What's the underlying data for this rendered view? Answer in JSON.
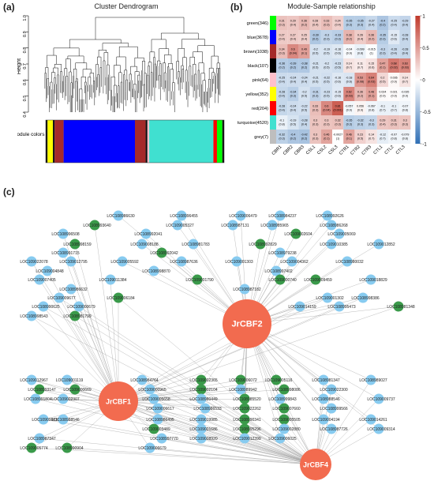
{
  "panel_a": {
    "label": "(a)",
    "title": "Cluster Dendrogram",
    "ylabel": "Height",
    "yticks": [
      "0.4",
      "0.5",
      "0.6",
      "0.7",
      "0.8",
      "0.9",
      "1.0"
    ],
    "module_colors_label": "Module colors",
    "color_bar": [
      {
        "color": "#111111",
        "w": 1
      },
      {
        "color": "#ffff00",
        "w": 3
      },
      {
        "color": "#111111",
        "w": 1
      },
      {
        "color": "#a52a2a",
        "w": 5
      },
      {
        "color": "#0000ff",
        "w": 40
      },
      {
        "color": "#a52a2a",
        "w": 6
      },
      {
        "color": "#111111",
        "w": 1
      },
      {
        "color": "#ffc0cb",
        "w": 1
      },
      {
        "color": "#40e0d0",
        "w": 36
      },
      {
        "color": "#ff0000",
        "w": 2
      },
      {
        "color": "#00ff00",
        "w": 3
      },
      {
        "color": "#111111",
        "w": 1
      }
    ]
  },
  "panel_b": {
    "label": "(b)",
    "title": "Module-Sample relationship",
    "rows": [
      {
        "name": "green(346)",
        "color": "#00ff00"
      },
      {
        "name": "blue(3678)",
        "color": "#0000ff"
      },
      {
        "name": "brown(1038)",
        "color": "#a52a2a"
      },
      {
        "name": "black(107)",
        "color": "#000000"
      },
      {
        "name": "pink(64)",
        "color": "#ffc0cb"
      },
      {
        "name": "yellow(352)",
        "color": "#ffff00"
      },
      {
        "name": "red(204)",
        "color": "#ff0000"
      },
      {
        "name": "turquoise(4520)",
        "color": "#40e0d0"
      },
      {
        "name": "grey(7)",
        "color": "#bebebe"
      }
    ],
    "cols": [
      "CBR1",
      "CBR2",
      "CBR3",
      "CSL1",
      "CSL2",
      "CSL3",
      "CTR1",
      "CTR2",
      "CTR3",
      "CTL1",
      "CTL2",
      "CTL3"
    ],
    "values": [
      [
        0.31,
        0.29,
        0.36,
        0.28,
        0.33,
        0.24,
        -0.35,
        -0.35,
        -0.27,
        -0.4,
        -0.25,
        -0.29
      ],
      [
        0.27,
        0.27,
        0.25,
        -0.39,
        -0.3,
        -0.33,
        0.38,
        0.26,
        0.36,
        -0.35,
        -0.15,
        -0.28
      ],
      [
        0.34,
        0.6,
        0.49,
        -0.2,
        -0.19,
        -0.16,
        -0.04,
        -0.099,
        -0.015,
        -0.3,
        -0.26,
        -0.28
      ],
      [
        -0.36,
        -0.39,
        -0.38,
        -0.21,
        -0.2,
        -0.23,
        0.14,
        0.11,
        0.15,
        0.47,
        0.68,
        0.63
      ],
      [
        -0.25,
        -0.24,
        -0.24,
        -0.21,
        -0.22,
        -0.16,
        -0.18,
        0.53,
        0.64,
        0.2,
        0.036,
        0.14
      ],
      [
        -0.28,
        -0.34,
        -0.2,
        -0.31,
        -0.23,
        -0.15,
        0.62,
        0.36,
        0.48,
        0.024,
        0.021,
        -0.035
      ],
      [
        -0.28,
        -0.24,
        -0.22,
        0.33,
        0.6,
        0.81,
        -0.057,
        0.056,
        -0.067,
        -0.1,
        -0.1,
        -0.07
      ],
      [
        -0.1,
        -0.19,
        -0.28,
        0.3,
        0.3,
        0.32,
        -0.35,
        -0.32,
        -0.3,
        0.29,
        0.31,
        0.3
      ],
      [
        -0.32,
        -0.4,
        -0.42,
        0.3,
        0.46,
        -0.0027,
        0.46,
        0.23,
        0.14,
        -0.12,
        -0.07,
        -0.079
      ]
    ],
    "pvalues": [
      [
        "(0.3)",
        "(0.4)",
        "(0.2)",
        "(0.4)",
        "(0.3)",
        "(0.4)",
        "(0.3)",
        "(0.3)",
        "(0.4)",
        "(0.2)",
        "(0.4)",
        "(0.4)"
      ],
      [
        "(0.4)",
        "(0.4)",
        "(0.4)",
        "(0.2)",
        "(0.3)",
        "(0.3)",
        "(0.2)",
        "(0.4)",
        "(0.2)",
        "(0.3)",
        "(0.6)",
        "(0.4)"
      ],
      [
        "(0.3)",
        "(0.04)",
        "(0.1)",
        "(0.5)",
        "(0.5)",
        "(0.6)",
        "(0.9)",
        "(0.8)",
        "(1)",
        "(0.3)",
        "(0.4)",
        "(0.4)"
      ],
      [
        "(0.2)",
        "(0.2)",
        "(0.2)",
        "(0.5)",
        "(0.5)",
        "(0.5)",
        "(0.7)",
        "(0.7)",
        "(0.6)",
        "(0.1)",
        "(0.02)",
        "(0.03)"
      ],
      [
        "(0.4)",
        "(0.4)",
        "(0.4)",
        "(0.5)",
        "(0.5)",
        "(0.6)",
        "(0.6)",
        "(0.08)",
        "(0.03)",
        "(0.5)",
        "(0.9)",
        "(0.7)"
      ],
      [
        "(0.4)",
        "(0.3)",
        "(0.5)",
        "(0.3)",
        "(0.5)",
        "(0.6)",
        "(0.03)",
        "(0.2)",
        "(0.1)",
        "(0.9)",
        "(0.9)",
        "(0.9)"
      ],
      [
        "(0.4)",
        "(0.4)",
        "(0.5)",
        "(0.3)",
        "(0.04)",
        "(0.001)",
        "(0.9)",
        "(0.9)",
        "(0.8)",
        "(0.7)",
        "(0.7)",
        "(0.8)"
      ],
      [
        "(0.8)",
        "(0.5)",
        "(0.4)",
        "(0.3)",
        "(0.3)",
        "(0.3)",
        "(0.3)",
        "(0.3)",
        "(0.3)",
        "(0.4)",
        "(0.3)",
        "(0.3)"
      ],
      [
        "(0.3)",
        "(0.2)",
        "(0.2)",
        "(0.3)",
        "(0.1)",
        "(1)",
        "(0.1)",
        "(0.5)",
        "(0.7)",
        "(0.7)",
        "(0.8)",
        "(0.8)"
      ]
    ],
    "legend_ticks": [
      "1",
      "0.5",
      "0",
      "-0.5",
      "-1"
    ],
    "colors": {
      "neg": "#2f6fb5",
      "mid": "#ffffff",
      "pos": "#c0392b"
    }
  },
  "panel_c": {
    "label": "(c)",
    "hubs": [
      "JrCBF2",
      "JrCBF1",
      "JrCBF4"
    ],
    "nodes": [
      {
        "label": "LOC108986630",
        "c": "b"
      },
      {
        "label": "LOC108996455",
        "c": "b"
      },
      {
        "label": "LOC109006479",
        "c": "b"
      },
      {
        "label": "LOC108984237",
        "c": "b"
      },
      {
        "label": "LOC108992626",
        "c": "b"
      },
      {
        "label": "LOC108993640",
        "c": "g"
      },
      {
        "label": "LOC109005327",
        "c": "b"
      },
      {
        "label": "LOC108987131",
        "c": "b"
      },
      {
        "label": "LOC108985965",
        "c": "b"
      },
      {
        "label": "LOC108986268",
        "c": "b"
      },
      {
        "label": "LOC108996508",
        "c": "b"
      },
      {
        "label": "LOC108992041",
        "c": "b"
      },
      {
        "label": "LOC109002604",
        "c": "g"
      },
      {
        "label": "LOC109005069",
        "c": "b"
      },
      {
        "label": "LOC108998159",
        "c": "g"
      },
      {
        "label": "LOC109008188",
        "c": "b"
      },
      {
        "label": "LOC108981783",
        "c": "b"
      },
      {
        "label": "LOC108992829",
        "c": "g"
      },
      {
        "label": "LOC109010385",
        "c": "b"
      },
      {
        "label": "LOC109012852",
        "c": "b"
      },
      {
        "label": "LOC108991715",
        "c": "b"
      },
      {
        "label": "LOC108992042",
        "c": "g"
      },
      {
        "label": "LOC108979238",
        "c": "b"
      },
      {
        "label": "LOC109022078",
        "c": "b"
      },
      {
        "label": "LOC109012795",
        "c": "b"
      },
      {
        "label": "LOC109005592",
        "c": "b"
      },
      {
        "label": "LOC108987636",
        "c": "b"
      },
      {
        "label": "LOC109001303",
        "c": "b"
      },
      {
        "label": "LOC109004362",
        "c": "b"
      },
      {
        "label": "LOC108980032",
        "c": "b"
      },
      {
        "label": "LOC109004848",
        "c": "b"
      },
      {
        "label": "LOC108998870",
        "c": "b"
      },
      {
        "label": "LOC108997402",
        "c": "b"
      },
      {
        "label": "LOC109007405",
        "c": "b"
      },
      {
        "label": "LOC109011384",
        "c": "b"
      },
      {
        "label": "LOC109001790",
        "c": "g"
      },
      {
        "label": "LOC109000740",
        "c": "g"
      },
      {
        "label": "LOC109009459",
        "c": "g"
      },
      {
        "label": "LOC109018829",
        "c": "b"
      },
      {
        "label": "LOC108986632",
        "c": "b"
      },
      {
        "label": "LOC108987182",
        "c": "b"
      },
      {
        "label": "LOC109009677",
        "c": "b"
      },
      {
        "label": "LOC109006184",
        "c": "g"
      },
      {
        "label": "LOC109001302",
        "c": "b"
      },
      {
        "label": "LOC108998386",
        "c": "b"
      },
      {
        "label": "LOC108990625",
        "c": "b"
      },
      {
        "label": "LOC109000679",
        "c": "b"
      },
      {
        "label": "LOC109014159",
        "c": "b"
      },
      {
        "label": "LOC108995473",
        "c": "b"
      },
      {
        "label": "LOC108981348",
        "c": "g"
      },
      {
        "label": "LOC108998543",
        "c": "b"
      },
      {
        "label": "LOC108981799",
        "c": "g"
      },
      {
        "label": "LOC109012967",
        "c": "b"
      },
      {
        "label": "LOC109001119",
        "c": "b"
      },
      {
        "label": "LOC108984764",
        "c": "b"
      },
      {
        "label": "LOC109002365",
        "c": "g"
      },
      {
        "label": "LOC109006072",
        "c": "g"
      },
      {
        "label": "LOC109005116",
        "c": "g"
      },
      {
        "label": "LOC108981347",
        "c": "b"
      },
      {
        "label": "LOC108989027",
        "c": "b"
      },
      {
        "label": "LOC108993147",
        "c": "g"
      },
      {
        "label": "LOC109000669",
        "c": "g"
      },
      {
        "label": "LOC109000965",
        "c": "b"
      },
      {
        "label": "LOC109002104",
        "c": "g"
      },
      {
        "label": "LOC108989942",
        "c": "b"
      },
      {
        "label": "LOC108998086",
        "c": "g"
      },
      {
        "label": "LOC109022300",
        "c": "b"
      },
      {
        "label": "LOC108991804",
        "c": "b"
      },
      {
        "label": "LOC109002307",
        "c": "b"
      },
      {
        "label": "LOC109005658",
        "c": "b"
      },
      {
        "label": "LOC108980449",
        "c": "b"
      },
      {
        "label": "LOC108985520",
        "c": "g"
      },
      {
        "label": "LOC108999843",
        "c": "b"
      },
      {
        "label": "LOC108988546",
        "c": "b"
      },
      {
        "label": "LOC109009737",
        "c": "b"
      },
      {
        "label": "LOC109006617",
        "c": "b"
      },
      {
        "label": "LOC108986533",
        "c": "b"
      },
      {
        "label": "LOC109022262",
        "c": "g"
      },
      {
        "label": "LOC109007660",
        "c": "g"
      },
      {
        "label": "LOC108999566",
        "c": "b"
      },
      {
        "label": "LOC109000016",
        "c": "b"
      },
      {
        "label": "LOC108988546",
        "c": "b"
      },
      {
        "label": "LOC108986495",
        "c": "b"
      },
      {
        "label": "LOC109019985",
        "c": "b"
      },
      {
        "label": "LOC108990341",
        "c": "g"
      },
      {
        "label": "LOC109005505",
        "c": "g"
      },
      {
        "label": "LOC109004194",
        "c": "b"
      },
      {
        "label": "LOC109014261",
        "c": "b"
      },
      {
        "label": "LOC109003489",
        "c": "g"
      },
      {
        "label": "LOC109001686",
        "c": "b"
      },
      {
        "label": "LOC108995296",
        "c": "g"
      },
      {
        "label": "LOC109002880",
        "c": "b"
      },
      {
        "label": "LOC108987726",
        "c": "b"
      },
      {
        "label": "LOC109009314",
        "c": "b"
      },
      {
        "label": "LOC108987347",
        "c": "b"
      },
      {
        "label": "LOC108997770",
        "c": "b"
      },
      {
        "label": "LOC109008920",
        "c": "b"
      },
      {
        "label": "LOC109012399",
        "c": "b"
      },
      {
        "label": "LOC109006025",
        "c": "b"
      },
      {
        "label": "LOC109005774",
        "c": "g"
      },
      {
        "label": "LOC108990904",
        "c": "g"
      },
      {
        "label": "LOC109006679",
        "c": "b"
      }
    ]
  }
}
